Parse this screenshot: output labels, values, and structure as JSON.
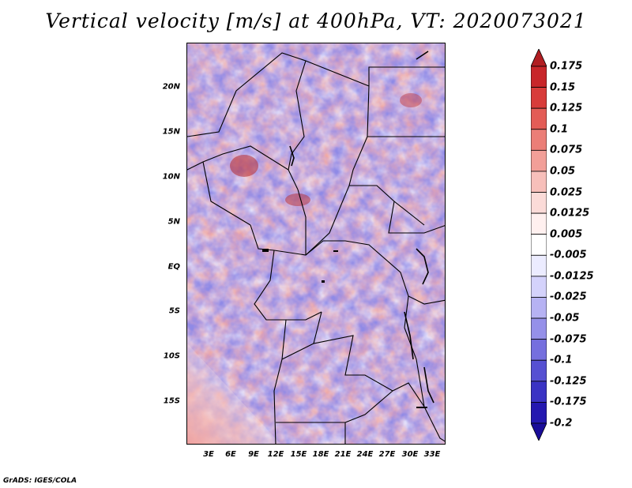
{
  "title": "Vertical velocity [m/s] at 400hPa, VT: 2020073021",
  "map": {
    "lat_labels": [
      "20N",
      "15N",
      "10N",
      "5N",
      "EQ",
      "5S",
      "10S",
      "15S"
    ],
    "lon_labels": [
      "3E",
      "6E",
      "9E",
      "12E",
      "15E",
      "18E",
      "21E",
      "24E",
      "27E",
      "30E",
      "33E"
    ],
    "field": "vertical velocity",
    "level": "400hPa"
  },
  "colorbar": {
    "labels": [
      "0.175",
      "0.15",
      "0.125",
      "0.1",
      "0.075",
      "0.05",
      "0.025",
      "0.0125",
      "0.005",
      "-0.005",
      "-0.0125",
      "-0.025",
      "-0.05",
      "-0.075",
      "-0.1",
      "-0.125",
      "-0.175",
      "-0.2"
    ],
    "colors": [
      "#b11e22",
      "#c8262a",
      "#d83c3a",
      "#e35c56",
      "#eb7e77",
      "#f29f98",
      "#f7bfba",
      "#fbdbd8",
      "#fff0ef",
      "#ffffff",
      "#ececff",
      "#d4d2fb",
      "#b6b2f3",
      "#9590e9",
      "#756fde",
      "#5650d2",
      "#3a33c4",
      "#2418b0",
      "#1a0d99"
    ]
  },
  "credit": "GrADS: IGES/COLA"
}
